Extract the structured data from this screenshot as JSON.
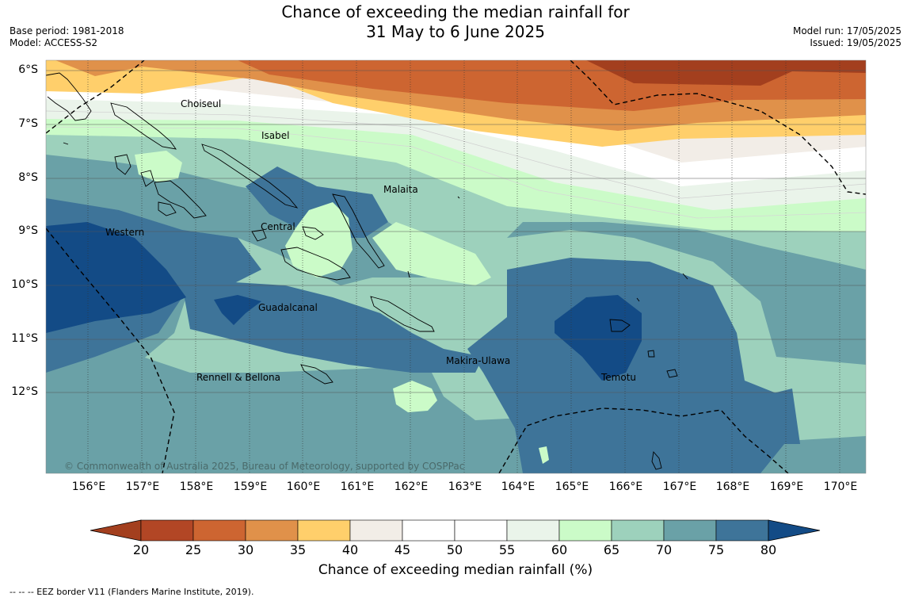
{
  "title": {
    "line1": "Chance of exceeding the median rainfall for",
    "line2": "31 May to 6 June 2025"
  },
  "meta_left": {
    "base_period": "Base period: 1981-2018",
    "model": "Model: ACCESS-S2"
  },
  "meta_right": {
    "model_run": "Model run: 17/05/2025",
    "issued": "Issued: 19/05/2025"
  },
  "map": {
    "lat_labels": [
      "6°S",
      "7°S",
      "8°S",
      "9°S",
      "10°S",
      "11°S",
      "12°S"
    ],
    "lon_labels": [
      "156°E",
      "157°E",
      "158°E",
      "159°E",
      "160°E",
      "161°E",
      "162°E",
      "163°E",
      "164°E",
      "165°E",
      "166°E",
      "167°E",
      "168°E",
      "169°E",
      "170°E"
    ],
    "provinces": [
      "Choiseul",
      "Isabel",
      "Malaita",
      "Western",
      "Central",
      "Guadalcanal",
      "Makira-Ulawa",
      "Rennell & Bellona",
      "Temotu"
    ],
    "copyright": "© Commonwealth of Australia 2025, Bureau of Meteorology, supported by COSPPac"
  },
  "colorbar": {
    "ticks": [
      "20",
      "25",
      "30",
      "35",
      "40",
      "45",
      "50",
      "55",
      "60",
      "65",
      "70",
      "75",
      "80"
    ],
    "colors": [
      "#a33f1e",
      "#b24625",
      "#cd6531",
      "#e0914a",
      "#ffcf6b",
      "#f2ede7",
      "#ffffff",
      "#ffffff",
      "#eaf4ea",
      "#cbfbc8",
      "#9dd1bc",
      "#6aa1a7",
      "#3e7499",
      "#134b86"
    ],
    "label": "Chance of exceeding median rainfall (%)"
  },
  "legend_note": "--  --  -- EEZ border V11 (Flanders Marine Institute, 2019)."
}
